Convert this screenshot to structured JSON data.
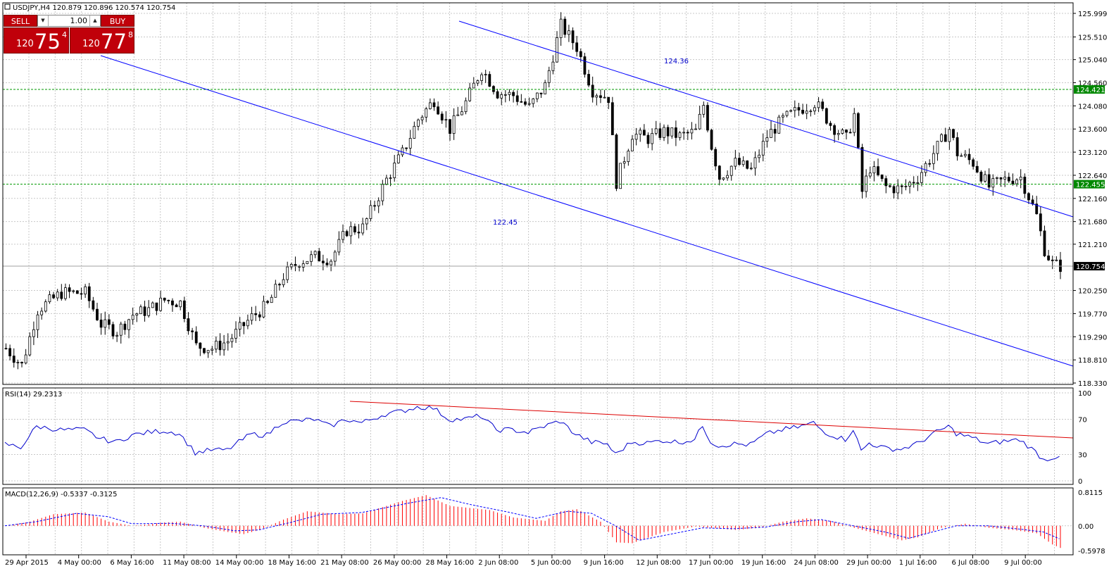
{
  "symbol_header": "USDJPY,H4  120.879 120.896 120.574 120.754",
  "trade_panel": {
    "sell_label": "SELL",
    "buy_label": "BUY",
    "lot": "1.00",
    "sell_price_small": "120",
    "sell_price_big": "75",
    "sell_price_sup": "4",
    "buy_price_small": "120",
    "buy_price_big": "77",
    "buy_price_sup": "8"
  },
  "chart_data": [
    {
      "type": "candlestick",
      "title": "USDJPY,H4",
      "ohlc_header": [
        120.879,
        120.896,
        120.574,
        120.754
      ],
      "ylim": [
        118.33,
        125.999
      ],
      "price_ticks": [
        "125.999",
        "125.510",
        "125.040",
        "124.560",
        "124.080",
        "123.600",
        "123.120",
        "122.640",
        "122.160",
        "121.680",
        "121.210",
        "120.250",
        "119.770",
        "119.290",
        "118.810",
        "118.330"
      ],
      "current_price": "120.754",
      "horizontal_levels": [
        {
          "value": 124.421,
          "label": "124.421",
          "color": "#009900"
        },
        {
          "value": 122.455,
          "label": "122.455",
          "color": "#009900"
        }
      ],
      "annotations": [
        "124.36",
        "122.45"
      ],
      "trendlines": [
        {
          "from": [
            "5 Jun 00:00",
            125.8
          ],
          "to": [
            "end",
            121.76
          ],
          "color": "#0000ff"
        },
        {
          "from": [
            "6 May 16:00",
            125.1
          ],
          "to": [
            "end",
            118.71
          ],
          "color": "#0000ff"
        }
      ],
      "x_labels": [
        "29 Apr 2015",
        "4 May 00:00",
        "6 May 16:00",
        "11 May 08:00",
        "14 May 00:00",
        "18 May 16:00",
        "21 May 08:00",
        "26 May 00:00",
        "28 May 16:00",
        "2 Jun 08:00",
        "5 Jun 00:00",
        "9 Jun 16:00",
        "12 Jun 08:00",
        "17 Jun 00:00",
        "19 Jun 16:00",
        "24 Jun 08:00",
        "29 Jun 00:00",
        "1 Jul 16:00",
        "6 Jul 08:00",
        "9 Jul 00:00"
      ],
      "close_keypoints": [
        [
          0,
          119.05
        ],
        [
          4,
          118.7
        ],
        [
          8,
          119.85
        ],
        [
          14,
          120.2
        ],
        [
          20,
          120.2
        ],
        [
          24,
          119.55
        ],
        [
          28,
          119.4
        ],
        [
          32,
          119.75
        ],
        [
          36,
          119.85
        ],
        [
          40,
          120.05
        ],
        [
          44,
          120.0
        ],
        [
          48,
          119.1
        ],
        [
          52,
          119.05
        ],
        [
          56,
          119.2
        ],
        [
          62,
          119.7
        ],
        [
          66,
          119.95
        ],
        [
          70,
          120.55
        ],
        [
          74,
          120.85
        ],
        [
          78,
          120.95
        ],
        [
          82,
          120.9
        ],
        [
          86,
          121.5
        ],
        [
          90,
          121.55
        ],
        [
          96,
          122.55
        ],
        [
          100,
          123.1
        ],
        [
          104,
          123.8
        ],
        [
          108,
          124.2
        ],
        [
          112,
          123.6
        ],
        [
          116,
          124.15
        ],
        [
          120,
          124.85
        ],
        [
          124,
          124.35
        ],
        [
          128,
          124.3
        ],
        [
          132,
          124.05
        ],
        [
          136,
          124.5
        ],
        [
          140,
          125.75
        ],
        [
          144,
          125.3
        ],
        [
          148,
          124.4
        ],
        [
          152,
          124.25
        ],
        [
          154,
          122.5
        ],
        [
          158,
          123.5
        ],
        [
          162,
          123.4
        ],
        [
          166,
          123.55
        ],
        [
          170,
          123.45
        ],
        [
          174,
          123.55
        ],
        [
          176,
          124.1
        ],
        [
          178,
          123.25
        ],
        [
          180,
          122.6
        ],
        [
          184,
          122.9
        ],
        [
          188,
          122.75
        ],
        [
          192,
          123.45
        ],
        [
          196,
          123.8
        ],
        [
          200,
          124.0
        ],
        [
          204,
          124.15
        ],
        [
          206,
          123.95
        ],
        [
          208,
          123.7
        ],
        [
          212,
          123.4
        ],
        [
          214,
          123.9
        ],
        [
          216,
          122.3
        ],
        [
          218,
          122.8
        ],
        [
          222,
          122.4
        ],
        [
          226,
          122.35
        ],
        [
          230,
          122.6
        ],
        [
          234,
          123.1
        ],
        [
          238,
          123.6
        ],
        [
          240,
          123.1
        ],
        [
          244,
          122.9
        ],
        [
          248,
          122.4
        ],
        [
          252,
          122.55
        ],
        [
          256,
          122.6
        ],
        [
          260,
          121.8
        ],
        [
          262,
          121.1
        ],
        [
          264,
          120.8
        ],
        [
          266,
          120.754
        ]
      ]
    },
    {
      "type": "line",
      "title": "RSI(14) 29.2313",
      "ylim": [
        0,
        100
      ],
      "y_ticks": [
        "100",
        "70",
        "30",
        "0"
      ],
      "trendline_color": "#dd0000",
      "series_color": "#0000cc",
      "keypoints": [
        [
          0,
          42
        ],
        [
          4,
          38
        ],
        [
          8,
          62
        ],
        [
          14,
          58
        ],
        [
          20,
          58
        ],
        [
          24,
          48
        ],
        [
          28,
          44
        ],
        [
          32,
          52
        ],
        [
          36,
          55
        ],
        [
          40,
          57
        ],
        [
          44,
          54
        ],
        [
          48,
          32
        ],
        [
          52,
          35
        ],
        [
          56,
          35
        ],
        [
          62,
          53
        ],
        [
          66,
          52
        ],
        [
          70,
          67
        ],
        [
          74,
          68
        ],
        [
          78,
          70
        ],
        [
          82,
          62
        ],
        [
          86,
          70
        ],
        [
          90,
          66
        ],
        [
          96,
          76
        ],
        [
          100,
          79
        ],
        [
          104,
          84
        ],
        [
          108,
          83
        ],
        [
          112,
          70
        ],
        [
          116,
          70
        ],
        [
          120,
          74
        ],
        [
          124,
          58
        ],
        [
          128,
          58
        ],
        [
          132,
          55
        ],
        [
          136,
          62
        ],
        [
          140,
          68
        ],
        [
          144,
          53
        ],
        [
          148,
          44
        ],
        [
          152,
          42
        ],
        [
          154,
          30
        ],
        [
          158,
          44
        ],
        [
          162,
          43
        ],
        [
          166,
          46
        ],
        [
          170,
          44
        ],
        [
          174,
          47
        ],
        [
          176,
          63
        ],
        [
          178,
          45
        ],
        [
          180,
          40
        ],
        [
          184,
          42
        ],
        [
          188,
          41
        ],
        [
          192,
          53
        ],
        [
          196,
          58
        ],
        [
          200,
          61
        ],
        [
          204,
          66
        ],
        [
          206,
          58
        ],
        [
          208,
          53
        ],
        [
          212,
          47
        ],
        [
          214,
          59
        ],
        [
          216,
          34
        ],
        [
          218,
          43
        ],
        [
          222,
          37
        ],
        [
          226,
          36
        ],
        [
          230,
          42
        ],
        [
          234,
          53
        ],
        [
          238,
          62
        ],
        [
          240,
          54
        ],
        [
          244,
          49
        ],
        [
          248,
          42
        ],
        [
          252,
          45
        ],
        [
          256,
          47
        ],
        [
          260,
          33
        ],
        [
          262,
          24
        ],
        [
          264,
          26
        ],
        [
          266,
          29.23
        ]
      ]
    },
    {
      "type": "bar",
      "title": "MACD(12,26,9) -0.5337 -0.3125",
      "ylim": [
        -0.5978,
        0.8115
      ],
      "y_ticks": [
        "0.8115",
        "0.00",
        "-0.5978"
      ],
      "bar_color": "#ff0000",
      "signal_color": "#0000ff",
      "macd_keypoints": [
        [
          0,
          0.0
        ],
        [
          6,
          0.1
        ],
        [
          12,
          0.28
        ],
        [
          20,
          0.32
        ],
        [
          26,
          0.1
        ],
        [
          32,
          0.0
        ],
        [
          40,
          0.08
        ],
        [
          44,
          0.1
        ],
        [
          50,
          -0.05
        ],
        [
          56,
          -0.15
        ],
        [
          60,
          -0.2
        ],
        [
          64,
          -0.1
        ],
        [
          70,
          0.15
        ],
        [
          76,
          0.35
        ],
        [
          84,
          0.28
        ],
        [
          90,
          0.3
        ],
        [
          100,
          0.6
        ],
        [
          106,
          0.74
        ],
        [
          112,
          0.48
        ],
        [
          118,
          0.42
        ],
        [
          122,
          0.38
        ],
        [
          128,
          0.2
        ],
        [
          136,
          0.12
        ],
        [
          140,
          0.35
        ],
        [
          144,
          0.4
        ],
        [
          150,
          0.1
        ],
        [
          154,
          -0.4
        ],
        [
          158,
          -0.42
        ],
        [
          166,
          -0.15
        ],
        [
          174,
          -0.02
        ],
        [
          178,
          -0.05
        ],
        [
          184,
          -0.1
        ],
        [
          190,
          -0.05
        ],
        [
          196,
          0.1
        ],
        [
          202,
          0.18
        ],
        [
          208,
          0.12
        ],
        [
          214,
          -0.05
        ],
        [
          220,
          -0.2
        ],
        [
          226,
          -0.35
        ],
        [
          230,
          -0.28
        ],
        [
          236,
          -0.05
        ],
        [
          242,
          0.05
        ],
        [
          248,
          -0.05
        ],
        [
          254,
          -0.1
        ],
        [
          260,
          -0.18
        ],
        [
          264,
          -0.45
        ],
        [
          266,
          -0.5337
        ]
      ],
      "signal_keypoints": [
        [
          0,
          0.0
        ],
        [
          8,
          0.1
        ],
        [
          18,
          0.3
        ],
        [
          26,
          0.22
        ],
        [
          32,
          0.05
        ],
        [
          42,
          0.06
        ],
        [
          50,
          0.0
        ],
        [
          58,
          -0.12
        ],
        [
          64,
          -0.1
        ],
        [
          72,
          0.08
        ],
        [
          80,
          0.28
        ],
        [
          90,
          0.32
        ],
        [
          102,
          0.55
        ],
        [
          110,
          0.68
        ],
        [
          118,
          0.5
        ],
        [
          126,
          0.35
        ],
        [
          134,
          0.18
        ],
        [
          142,
          0.35
        ],
        [
          148,
          0.3
        ],
        [
          154,
          0.0
        ],
        [
          160,
          -0.35
        ],
        [
          168,
          -0.2
        ],
        [
          176,
          -0.05
        ],
        [
          184,
          -0.07
        ],
        [
          192,
          -0.03
        ],
        [
          200,
          0.1
        ],
        [
          206,
          0.15
        ],
        [
          214,
          0.0
        ],
        [
          222,
          -0.15
        ],
        [
          228,
          -0.3
        ],
        [
          234,
          -0.15
        ],
        [
          240,
          0.0
        ],
        [
          248,
          0.0
        ],
        [
          256,
          -0.08
        ],
        [
          262,
          -0.15
        ],
        [
          266,
          -0.3125
        ]
      ]
    }
  ]
}
